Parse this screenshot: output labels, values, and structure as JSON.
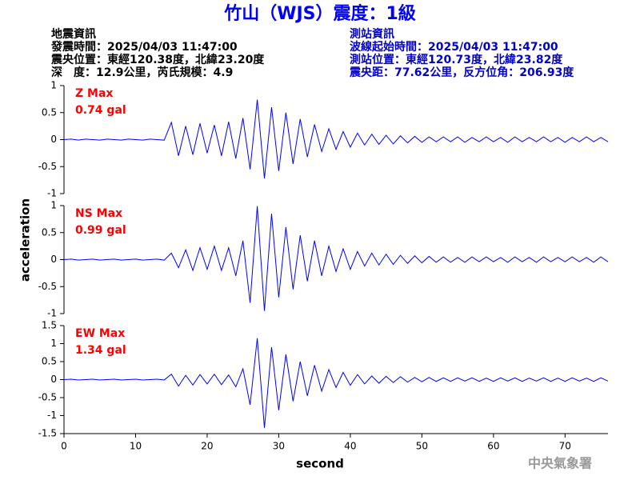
{
  "header": {
    "title": "竹山（WJS）震度：1級",
    "event_info": [
      "地震資訊",
      "發震時間：2025/04/03 11:47:00",
      "震央位置：東經120.38度，北緯23.20度",
      "深　度：12.9公里，芮氏規模：4.9"
    ],
    "station_info": [
      "測站資訊",
      "波線起始時間：2025/04/03 11:47:00",
      "測站位置：東經120.73度，北緯23.82度",
      "震央距：77.62公里，反方位角：206.93度"
    ],
    "footer": "中央氣象署"
  },
  "chart_data": {
    "type": "line",
    "xlabel": "second",
    "ylabel": "acceleration",
    "xlim": [
      0,
      76
    ],
    "xticks": [
      0,
      10,
      20,
      30,
      40,
      50,
      60,
      70
    ],
    "color": "#0000ff",
    "annotation_color": "#ff0000",
    "x": [
      0,
      1,
      2,
      3,
      4,
      5,
      6,
      7,
      8,
      9,
      10,
      11,
      12,
      13,
      14,
      15,
      16,
      17,
      18,
      19,
      20,
      21,
      22,
      23,
      24,
      25,
      26,
      27,
      28,
      29,
      30,
      31,
      32,
      33,
      34,
      35,
      36,
      37,
      38,
      39,
      40,
      41,
      42,
      43,
      44,
      45,
      46,
      47,
      48,
      49,
      50,
      51,
      52,
      53,
      54,
      55,
      56,
      57,
      58,
      59,
      60,
      61,
      62,
      63,
      64,
      65,
      66,
      67,
      68,
      69,
      70,
      71,
      72,
      73,
      74,
      75,
      76
    ],
    "panels": [
      {
        "annotation": [
          "Z Max",
          "0.74 gal"
        ],
        "ylim": [
          -1,
          1
        ],
        "yticks": [
          -1,
          -0.5,
          0,
          0.5,
          1
        ],
        "values": [
          0,
          0.01,
          -0.01,
          0.01,
          0,
          -0.01,
          0.01,
          0,
          -0.01,
          0.01,
          0,
          -0.01,
          0.01,
          0,
          -0.01,
          0.32,
          -0.3,
          0.25,
          -0.28,
          0.3,
          -0.25,
          0.27,
          -0.3,
          0.33,
          -0.35,
          0.4,
          -0.55,
          0.74,
          -0.72,
          0.6,
          -0.58,
          0.5,
          -0.45,
          0.38,
          -0.32,
          0.28,
          -0.22,
          0.2,
          -0.18,
          0.15,
          -0.14,
          0.12,
          -0.1,
          0.1,
          -0.09,
          0.08,
          -0.08,
          0.07,
          -0.06,
          0.06,
          -0.05,
          0.05,
          -0.04,
          0.05,
          -0.04,
          0.05,
          -0.05,
          0.04,
          -0.04,
          0.05,
          -0.04,
          0.04,
          -0.05,
          0.05,
          -0.04,
          0.04,
          -0.04,
          0.05,
          -0.04,
          0.04,
          -0.05,
          0.04,
          -0.04,
          0.05,
          -0.04,
          0.04,
          -0.04
        ]
      },
      {
        "annotation": [
          "NS Max",
          "0.99 gal"
        ],
        "ylim": [
          -1,
          1
        ],
        "yticks": [
          -1,
          -0.5,
          0,
          0.5,
          1
        ],
        "values": [
          0,
          0.01,
          -0.01,
          0,
          0.01,
          -0.01,
          0,
          0.01,
          -0.01,
          0,
          0.01,
          -0.01,
          0,
          0.01,
          -0.01,
          0.12,
          -0.15,
          0.18,
          -0.2,
          0.22,
          -0.18,
          0.25,
          -0.2,
          0.22,
          -0.3,
          0.35,
          -0.8,
          0.99,
          -0.95,
          0.85,
          -0.7,
          0.6,
          -0.55,
          0.45,
          -0.4,
          0.35,
          -0.3,
          0.25,
          -0.22,
          0.2,
          -0.18,
          0.15,
          -0.12,
          0.12,
          -0.1,
          0.1,
          -0.09,
          0.08,
          -0.07,
          0.07,
          -0.06,
          0.06,
          -0.05,
          0.05,
          -0.05,
          0.04,
          -0.05,
          0.05,
          -0.04,
          0.05,
          -0.04,
          0.04,
          -0.05,
          0.05,
          -0.04,
          0.04,
          -0.05,
          0.05,
          -0.04,
          0.04,
          -0.04,
          0.05,
          -0.04,
          0.04,
          -0.05,
          0.05,
          -0.04
        ]
      },
      {
        "annotation": [
          "EW Max",
          "1.34 gal"
        ],
        "ylim": [
          -1.5,
          1.5
        ],
        "yticks": [
          -1.5,
          -1,
          -0.5,
          0,
          0.5,
          1,
          1.5
        ],
        "values": [
          0,
          0.01,
          -0.01,
          0,
          0.01,
          -0.01,
          0,
          0.01,
          -0.01,
          0,
          0.01,
          -0.01,
          0,
          0.01,
          -0.01,
          0.15,
          -0.18,
          0.12,
          -0.15,
          0.14,
          -0.12,
          0.15,
          -0.14,
          0.13,
          -0.2,
          0.3,
          -0.7,
          1.15,
          -1.34,
          0.9,
          -0.85,
          0.7,
          -0.6,
          0.5,
          -0.45,
          0.4,
          -0.32,
          0.28,
          -0.22,
          0.2,
          -0.16,
          0.14,
          -0.12,
          0.1,
          -0.1,
          0.09,
          -0.08,
          0.08,
          -0.07,
          0.06,
          -0.06,
          0.06,
          -0.05,
          0.05,
          -0.05,
          0.05,
          -0.04,
          0.05,
          -0.05,
          0.04,
          -0.05,
          0.05,
          -0.04,
          0.05,
          -0.05,
          0.04,
          -0.04,
          0.05,
          -0.05,
          0.04,
          -0.05,
          0.05,
          -0.04,
          0.04,
          -0.05,
          0.05,
          -0.04
        ]
      }
    ]
  }
}
